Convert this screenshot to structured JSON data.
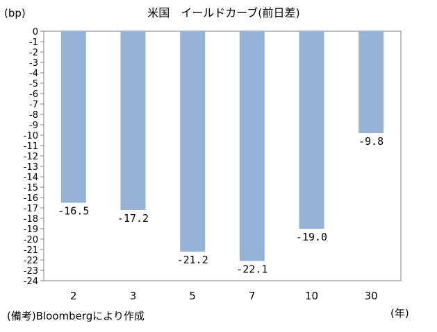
{
  "chart_data": {
    "type": "bar",
    "title": "米国　イールドカーブ(前日差)",
    "ylabel": "(bp)",
    "xlabel": "(年)",
    "categories": [
      "2",
      "3",
      "5",
      "7",
      "10",
      "30"
    ],
    "values": [
      -16.5,
      -17.2,
      -21.2,
      -22.1,
      -19.0,
      -9.8
    ],
    "value_labels": [
      "-16.5",
      "-17.2",
      "-21.2",
      "-22.1",
      "-19.0",
      "-9.8"
    ],
    "ylim": [
      -24,
      0
    ],
    "yticks": [
      0,
      -1,
      -2,
      -3,
      -4,
      -5,
      -6,
      -7,
      -8,
      -9,
      -10,
      -11,
      -12,
      -13,
      -14,
      -15,
      -16,
      -17,
      -18,
      -19,
      -20,
      -21,
      -22,
      -23,
      -24
    ],
    "bar_color": "#95b3d7",
    "grid": false,
    "legend": "none"
  },
  "note": "(備考)Bloombergにより作成"
}
